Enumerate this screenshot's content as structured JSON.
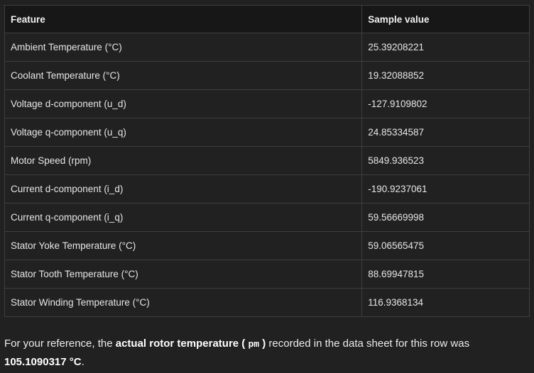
{
  "table": {
    "headers": [
      "Feature",
      "Sample value"
    ],
    "rows": [
      [
        "Ambient Temperature (°C)",
        "25.39208221"
      ],
      [
        "Coolant Temperature (°C)",
        "19.32088852"
      ],
      [
        "Voltage d-component (u_d)",
        "-127.9109802"
      ],
      [
        "Voltage q-component (u_q)",
        "24.85334587"
      ],
      [
        "Motor Speed (rpm)",
        "5849.936523"
      ],
      [
        "Current d-component (i_d)",
        "-190.9237061"
      ],
      [
        "Current q-component (i_q)",
        "59.56669998"
      ],
      [
        "Stator Yoke Temperature (°C)",
        "59.06565475"
      ],
      [
        "Stator Tooth Temperature (°C)",
        "88.69947815"
      ],
      [
        "Stator Winding Temperature (°C)",
        "116.9368134"
      ]
    ]
  },
  "note": {
    "prefix": "For your reference, the ",
    "bold_text": "actual rotor temperature (",
    "code": "pm",
    "bold_close": ")",
    "middle": " recorded in the data sheet for this row was ",
    "value": "105.1090317 °C",
    "suffix": "."
  }
}
